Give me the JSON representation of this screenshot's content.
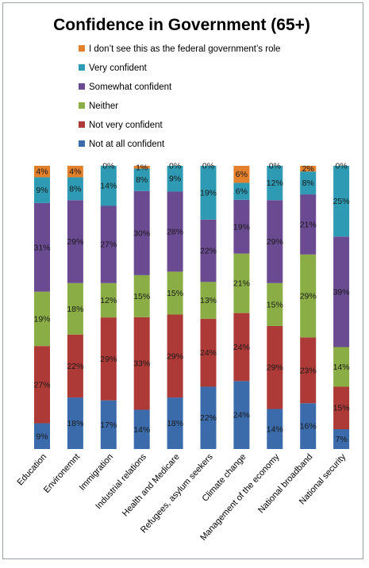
{
  "chart_data": {
    "type": "bar",
    "stacked": true,
    "percent_stacked": true,
    "title": "Confidence in Government (65+)",
    "xlabel": "",
    "ylabel": "",
    "ylim": [
      0,
      100
    ],
    "grid": false,
    "legend_position": "top",
    "categories": [
      "Education",
      "Environemnt",
      "Immigration",
      "Industrial relations",
      "Health and Medicare",
      "Refugees, asylum seekers",
      "Climate change",
      "Management of the economy",
      "National broadband",
      "National security"
    ],
    "series": [
      {
        "name": "Not at all confident",
        "color": "#3b6bab",
        "values": [
          9,
          18,
          17,
          14,
          18,
          22,
          24,
          14,
          16,
          7
        ]
      },
      {
        "name": "Not very confident",
        "color": "#ad3a36",
        "values": [
          27,
          22,
          29,
          33,
          29,
          24,
          24,
          29,
          23,
          15
        ]
      },
      {
        "name": "Neither",
        "color": "#8aad45",
        "values": [
          19,
          18,
          12,
          15,
          15,
          13,
          21,
          15,
          29,
          14
        ]
      },
      {
        "name": "Somewhat confident",
        "color": "#6a4a91",
        "values": [
          31,
          29,
          27,
          30,
          28,
          22,
          19,
          29,
          21,
          39
        ]
      },
      {
        "name": "Very confident",
        "color": "#2f9ab3",
        "values": [
          9,
          8,
          14,
          8,
          9,
          19,
          6,
          12,
          8,
          25
        ]
      },
      {
        "name": "I don’t see this as the federal government’s  role",
        "color": "#e3802b",
        "values": [
          4,
          4,
          0,
          1,
          0,
          0,
          6,
          0,
          2,
          0
        ]
      }
    ],
    "value_suffix": "%"
  }
}
